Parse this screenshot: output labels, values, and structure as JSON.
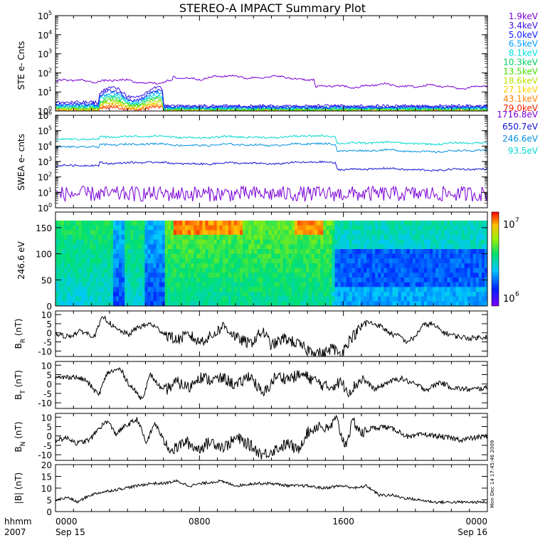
{
  "title": "STEREO-A IMPACT Summary Plot",
  "stamp": "Mon Dec 14 17:45:46 2009",
  "time_axis": {
    "corner_top": "hhmm",
    "corner_bottom": "2007",
    "ticks": [
      {
        "hhmm": "0000",
        "date": "Sep 15"
      },
      {
        "hhmm": "0800",
        "date": ""
      },
      {
        "hhmm": "1600",
        "date": ""
      },
      {
        "hhmm": "0000",
        "date": "Sep 16"
      }
    ]
  },
  "chart_data": [
    {
      "id": "ste",
      "type": "line",
      "ylabel": "STE e- Cnts",
      "yscale": "log",
      "ylim_decades": [
        0,
        5
      ],
      "series": [
        {
          "name": "1.9keV",
          "color": "#7a00d6",
          "level": 1.65
        },
        {
          "name": "3.4keV",
          "color": "#3b10e0",
          "level": 0.45
        },
        {
          "name": "5.0keV",
          "color": "#1020ff",
          "level": 0.35
        },
        {
          "name": "6.5keV",
          "color": "#00a0ff",
          "level": 0.3
        },
        {
          "name": "8.1keV",
          "color": "#00e0e0",
          "level": 0.25
        },
        {
          "name": "10.3keV",
          "color": "#00d060",
          "level": 0.2
        },
        {
          "name": "13.5keV",
          "color": "#40e000",
          "level": 0.15
        },
        {
          "name": "18.6keV",
          "color": "#b8e000",
          "level": 0.1
        },
        {
          "name": "27.1keV",
          "color": "#ffd000",
          "level": 0.06
        },
        {
          "name": "43.1keV",
          "color": "#ff8000",
          "level": 0.03
        },
        {
          "name": "79.0keV",
          "color": "#ff2000",
          "level": 0.01
        }
      ]
    },
    {
      "id": "swea",
      "type": "line",
      "ylabel": "SWEA e- cnts",
      "yscale": "log",
      "ylim_decades": [
        0,
        6
      ],
      "series": [
        {
          "name": "1716.8eV",
          "color": "#7a00d6",
          "level": 0.9
        },
        {
          "name": "650.7eV",
          "color": "#1010d0",
          "level": 2.7
        },
        {
          "name": "246.6eV",
          "color": "#0090e0",
          "level": 3.9
        },
        {
          "name": "93.5eV",
          "color": "#00d8d0",
          "level": 4.4
        }
      ]
    },
    {
      "id": "pad",
      "type": "heatmap",
      "ylabel": "246.6 eV",
      "ylim": [
        0,
        180
      ],
      "yticks": [
        0,
        50,
        100,
        150
      ],
      "colorbar_labels": [
        "10",
        "7",
        "10",
        "6"
      ]
    },
    {
      "id": "br",
      "type": "line",
      "ylabel_main": "B",
      "ylabel_sub": "R",
      "ylabel_unit": " (nT)",
      "ylim": [
        -13,
        12
      ],
      "yticks": [
        -10,
        -5,
        0,
        5,
        10
      ],
      "keypoints": [
        [
          0,
          -1
        ],
        [
          0.03,
          -2
        ],
        [
          0.06,
          1
        ],
        [
          0.09,
          -2
        ],
        [
          0.11,
          9
        ],
        [
          0.14,
          2
        ],
        [
          0.17,
          -1
        ],
        [
          0.19,
          3
        ],
        [
          0.22,
          5
        ],
        [
          0.25,
          0
        ],
        [
          0.28,
          -4
        ],
        [
          0.31,
          -1
        ],
        [
          0.33,
          -5
        ],
        [
          0.36,
          -2
        ],
        [
          0.39,
          4
        ],
        [
          0.42,
          -3
        ],
        [
          0.45,
          -6
        ],
        [
          0.48,
          1
        ],
        [
          0.5,
          -7
        ],
        [
          0.53,
          -3
        ],
        [
          0.56,
          -6
        ],
        [
          0.58,
          -9
        ],
        [
          0.6,
          -10
        ],
        [
          0.62,
          -12
        ],
        [
          0.64,
          -8
        ],
        [
          0.66,
          -12
        ],
        [
          0.68,
          -4
        ],
        [
          0.7,
          1
        ],
        [
          0.72,
          6
        ],
        [
          0.75,
          4
        ],
        [
          0.78,
          -1
        ],
        [
          0.8,
          -2
        ],
        [
          0.81,
          -5
        ],
        [
          0.83,
          -3
        ],
        [
          0.85,
          4
        ],
        [
          0.87,
          5
        ],
        [
          0.9,
          0
        ],
        [
          0.93,
          -2
        ],
        [
          0.96,
          -3
        ],
        [
          1,
          -2
        ]
      ]
    },
    {
      "id": "bt",
      "type": "line",
      "ylabel_main": "B",
      "ylabel_sub": "T",
      "ylabel_unit": " (nT)",
      "ylim": [
        -13,
        12
      ],
      "yticks": [
        -10,
        -5,
        0,
        5,
        10
      ],
      "keypoints": [
        [
          0,
          3
        ],
        [
          0.04,
          4
        ],
        [
          0.07,
          2
        ],
        [
          0.1,
          -6
        ],
        [
          0.12,
          6
        ],
        [
          0.15,
          8
        ],
        [
          0.17,
          0
        ],
        [
          0.2,
          -8
        ],
        [
          0.22,
          5
        ],
        [
          0.25,
          -4
        ],
        [
          0.28,
          1
        ],
        [
          0.31,
          -2
        ],
        [
          0.33,
          4
        ],
        [
          0.36,
          2
        ],
        [
          0.39,
          3
        ],
        [
          0.42,
          -1
        ],
        [
          0.45,
          5
        ],
        [
          0.48,
          -6
        ],
        [
          0.51,
          4
        ],
        [
          0.54,
          3
        ],
        [
          0.57,
          5
        ],
        [
          0.6,
          2
        ],
        [
          0.63,
          -2
        ],
        [
          0.66,
          1
        ],
        [
          0.68,
          -4
        ],
        [
          0.71,
          3
        ],
        [
          0.74,
          -3
        ],
        [
          0.77,
          1
        ],
        [
          0.8,
          3
        ],
        [
          0.83,
          0
        ],
        [
          0.86,
          -3
        ],
        [
          0.89,
          1
        ],
        [
          0.92,
          -2
        ],
        [
          0.96,
          -3
        ],
        [
          1,
          -2
        ]
      ]
    },
    {
      "id": "bn",
      "type": "line",
      "ylabel_main": "B",
      "ylabel_sub": "N",
      "ylabel_unit": " (nT)",
      "ylim": [
        -13,
        12
      ],
      "yticks": [
        -10,
        -5,
        0,
        5,
        10
      ],
      "keypoints": [
        [
          0,
          -2
        ],
        [
          0.03,
          -1
        ],
        [
          0.05,
          -4
        ],
        [
          0.08,
          -2
        ],
        [
          0.1,
          4
        ],
        [
          0.12,
          8
        ],
        [
          0.14,
          1
        ],
        [
          0.16,
          5
        ],
        [
          0.19,
          9
        ],
        [
          0.21,
          -4
        ],
        [
          0.23,
          7
        ],
        [
          0.25,
          -2
        ],
        [
          0.27,
          -8
        ],
        [
          0.3,
          -3
        ],
        [
          0.33,
          -7
        ],
        [
          0.36,
          -3
        ],
        [
          0.39,
          -6
        ],
        [
          0.42,
          -1
        ],
        [
          0.45,
          -5
        ],
        [
          0.48,
          -10
        ],
        [
          0.51,
          -7
        ],
        [
          0.54,
          -4
        ],
        [
          0.56,
          -8
        ],
        [
          0.58,
          1
        ],
        [
          0.61,
          6
        ],
        [
          0.63,
          3
        ],
        [
          0.65,
          9
        ],
        [
          0.67,
          -5
        ],
        [
          0.69,
          8
        ],
        [
          0.71,
          1
        ],
        [
          0.73,
          4
        ],
        [
          0.76,
          5
        ],
        [
          0.79,
          3
        ],
        [
          0.82,
          -1
        ],
        [
          0.85,
          1
        ],
        [
          0.88,
          0
        ],
        [
          0.91,
          -1
        ],
        [
          0.94,
          -2
        ],
        [
          0.97,
          -1
        ],
        [
          1,
          0
        ]
      ]
    },
    {
      "id": "bmag",
      "type": "line",
      "ylabel_main": "|B|",
      "ylabel_sub": "",
      "ylabel_unit": " (nT)",
      "ylim": [
        0,
        20
      ],
      "yticks": [
        0,
        5,
        10,
        15,
        20
      ],
      "keypoints": [
        [
          0,
          5
        ],
        [
          0.03,
          6
        ],
        [
          0.05,
          4
        ],
        [
          0.08,
          7
        ],
        [
          0.1,
          8
        ],
        [
          0.13,
          9
        ],
        [
          0.16,
          10
        ],
        [
          0.19,
          11
        ],
        [
          0.22,
          12
        ],
        [
          0.25,
          12
        ],
        [
          0.28,
          13
        ],
        [
          0.31,
          11
        ],
        [
          0.34,
          12
        ],
        [
          0.38,
          13
        ],
        [
          0.42,
          11
        ],
        [
          0.46,
          12
        ],
        [
          0.5,
          12
        ],
        [
          0.54,
          11
        ],
        [
          0.58,
          11
        ],
        [
          0.62,
          10
        ],
        [
          0.66,
          11
        ],
        [
          0.7,
          10
        ],
        [
          0.72,
          11
        ],
        [
          0.75,
          7
        ],
        [
          0.78,
          7
        ],
        [
          0.8,
          6
        ],
        [
          0.84,
          5
        ],
        [
          0.88,
          4
        ],
        [
          0.92,
          4
        ],
        [
          0.96,
          4
        ],
        [
          1,
          4
        ]
      ]
    }
  ]
}
